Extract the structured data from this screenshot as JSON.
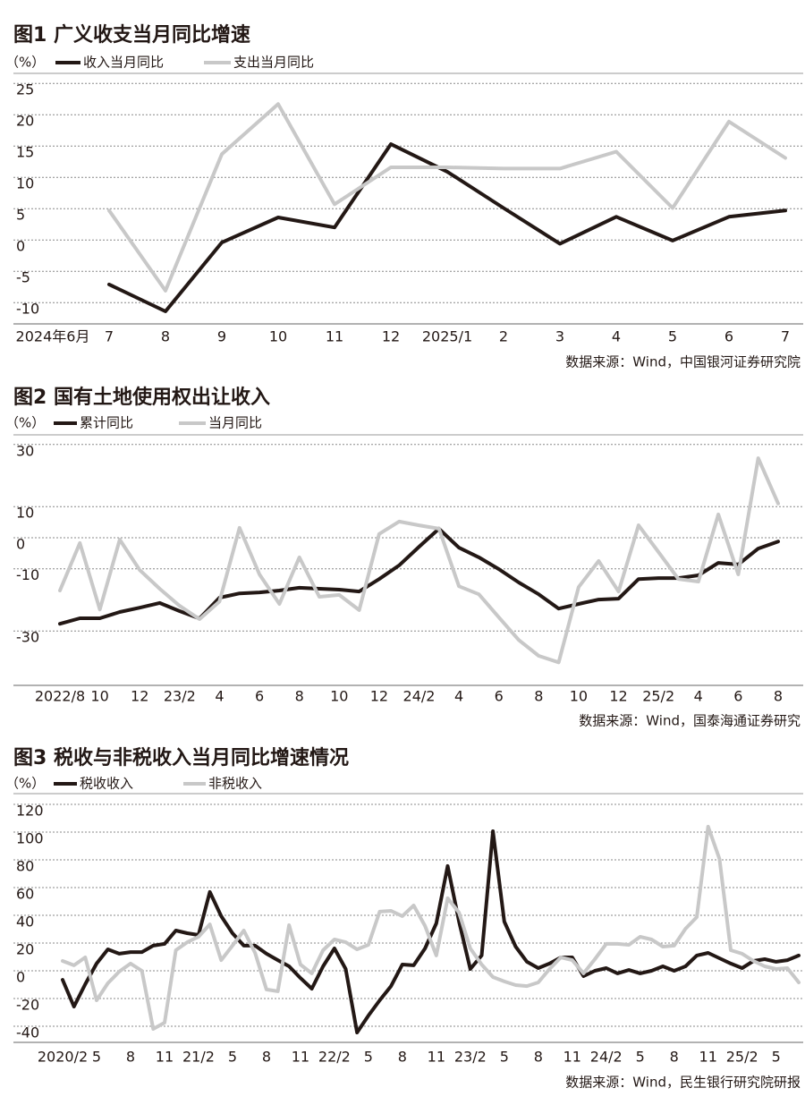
{
  "chart_data": [
    {
      "type": "line",
      "title": "图1 广义收支当月同比增速",
      "y_unit": "（%）",
      "categories": [
        "2024年6月",
        "7",
        "8",
        "9",
        "10",
        "11",
        "12",
        "2025/1",
        "2",
        "3",
        "4",
        "5",
        "6",
        "7"
      ],
      "series": [
        {
          "name": "收入当月同比",
          "color": "#231815",
          "values": [
            null,
            -7.1,
            -11.4,
            -0.4,
            3.6,
            2.0,
            15.3,
            10.9,
            5.1,
            -0.6,
            3.7,
            -0.1,
            3.7,
            4.7
          ]
        },
        {
          "name": "支出当月同比",
          "color": "#c8c8c8",
          "values": [
            null,
            4.7,
            -8.1,
            13.7,
            21.7,
            5.7,
            11.6,
            11.6,
            11.4,
            11.4,
            14.1,
            5.1,
            18.9,
            13.1
          ]
        }
      ],
      "ylim": [
        -13.4,
        26.6
      ],
      "yticks": [
        -10,
        -5,
        0,
        5,
        10,
        15,
        20,
        25
      ],
      "grid": true,
      "source": "数据来源：Wind，中国银河证券研究院"
    },
    {
      "type": "line",
      "title": "图2 国有土地使用权出让收入",
      "y_unit": "（%）",
      "categories": [
        "2022/8",
        null,
        "10",
        null,
        "12",
        null,
        "23/2",
        null,
        "4",
        null,
        "6",
        null,
        "8",
        null,
        "10",
        null,
        "12",
        null,
        "24/2",
        null,
        "4",
        null,
        "6",
        null,
        "8",
        null,
        "10",
        null,
        "12",
        null,
        "25/2",
        null,
        "4",
        null,
        "6",
        null,
        "8"
      ],
      "series": [
        {
          "name": "累计同比",
          "color": "#231815",
          "values": [
            -27.7,
            -25.9,
            -25.9,
            -23.9,
            -22.5,
            -21.0,
            -23.6,
            -26.0,
            -19.3,
            -17.9,
            -17.6,
            -17.0,
            -16.1,
            -16.4,
            -16.7,
            -17.3,
            -13.3,
            -8.9,
            -2.9,
            2.9,
            -3.2,
            -6.3,
            -10.1,
            -14.4,
            -18.2,
            -22.8,
            -21.3,
            -19.9,
            -19.6,
            -13.3,
            -13.0,
            -13.0,
            -12.1,
            -8.1,
            -8.6,
            -3.5,
            -1.2
          ]
        },
        {
          "name": "当月同比",
          "color": "#c8c8c8",
          "values": [
            -17.0,
            -1.7,
            -23.1,
            -0.6,
            -10.4,
            -16.4,
            -21.9,
            -26.2,
            -20.5,
            3.2,
            -11.8,
            -21.3,
            -6.3,
            -19.0,
            -18.4,
            -23.3,
            1.2,
            5.2,
            4.0,
            2.9,
            -15.6,
            -18.2,
            -25.6,
            -32.9,
            -38.0,
            -40.1,
            -15.9,
            -7.5,
            -17.3,
            4.0,
            -4.6,
            -13.3,
            -14.1,
            7.5,
            -11.8,
            25.6,
            11.0
          ]
        }
      ],
      "ylim": [
        -47.5,
        33.1
      ],
      "yticks": [
        -30,
        -10,
        0,
        10,
        30
      ],
      "grid": true,
      "source": "数据来源：Wind，国泰海通证券研究"
    },
    {
      "type": "line",
      "title": "图3 税收与非税收入当月同比增速情况",
      "y_unit": "（%）",
      "categories": [
        "2020/2",
        null,
        null,
        "5",
        null,
        null,
        "8",
        null,
        null,
        "11",
        null,
        null,
        "21/2",
        null,
        null,
        "5",
        null,
        null,
        "8",
        null,
        null,
        "11",
        null,
        null,
        "22/2",
        null,
        null,
        "5",
        null,
        null,
        "8",
        null,
        null,
        "11",
        null,
        null,
        "23/2",
        null,
        null,
        "5",
        null,
        null,
        "8",
        null,
        null,
        "11",
        null,
        null,
        "24/2",
        null,
        null,
        "5",
        null,
        null,
        "8",
        null,
        null,
        "11",
        null,
        null,
        "25/2",
        null,
        null,
        "5",
        null,
        null
      ],
      "series": [
        {
          "name": "税收收入",
          "color": "#231815",
          "values": [
            -6.5,
            -25.8,
            -9.7,
            5.2,
            15.5,
            12.3,
            13.5,
            13.5,
            18.1,
            19.4,
            29.0,
            27.1,
            25.8,
            56.8,
            39.4,
            27.1,
            18.1,
            18.1,
            12.3,
            7.7,
            3.2,
            -5.2,
            -12.9,
            3.2,
            16.1,
            1.3,
            -44.5,
            -32.3,
            -21.3,
            -11.0,
            4.5,
            3.9,
            16.1,
            34.2,
            75.5,
            35.5,
            1.3,
            11.0,
            100.6,
            35.5,
            17.4,
            6.5,
            1.9,
            5.2,
            9.7,
            9.7,
            -3.9,
            0,
            1.9,
            -1.9,
            0.6,
            -1.9,
            0,
            3.2,
            0,
            3.2,
            11.0,
            12.9,
            9.0,
            5.2,
            1.9,
            7.1,
            8.4,
            6.5,
            7.7,
            11.0
          ]
        },
        {
          "name": "非税收入",
          "color": "#c8c8c8",
          "values": [
            7.1,
            3.9,
            9.7,
            -21.3,
            -9.0,
            -0.6,
            5.2,
            0,
            -41.9,
            -37.4,
            14.8,
            20.6,
            24.5,
            33.5,
            7.7,
            18.1,
            29.0,
            12.9,
            -13.5,
            -14.8,
            32.9,
            4.5,
            -1.9,
            14.8,
            22.6,
            20.6,
            15.5,
            18.7,
            42.6,
            43.2,
            39.4,
            47.1,
            32.3,
            11.0,
            52.3,
            41.9,
            16.1,
            4.5,
            -4.5,
            -7.7,
            -10.3,
            -11.0,
            -8.4,
            1.3,
            9.7,
            7.7,
            -1.9,
            8.4,
            19.4,
            19.4,
            18.7,
            24.5,
            22.6,
            17.4,
            18.1,
            30.3,
            38.7,
            103.9,
            80.6,
            14.8,
            12.3,
            7.1,
            3.2,
            1.3,
            1.9,
            -8.4
          ]
        }
      ],
      "ylim": [
        -51.6,
        127.7
      ],
      "yticks": [
        -40,
        -20,
        0,
        20,
        40,
        60,
        80,
        100,
        120
      ],
      "grid": true,
      "source": "数据来源：Wind，民生银行研究院研报"
    }
  ]
}
